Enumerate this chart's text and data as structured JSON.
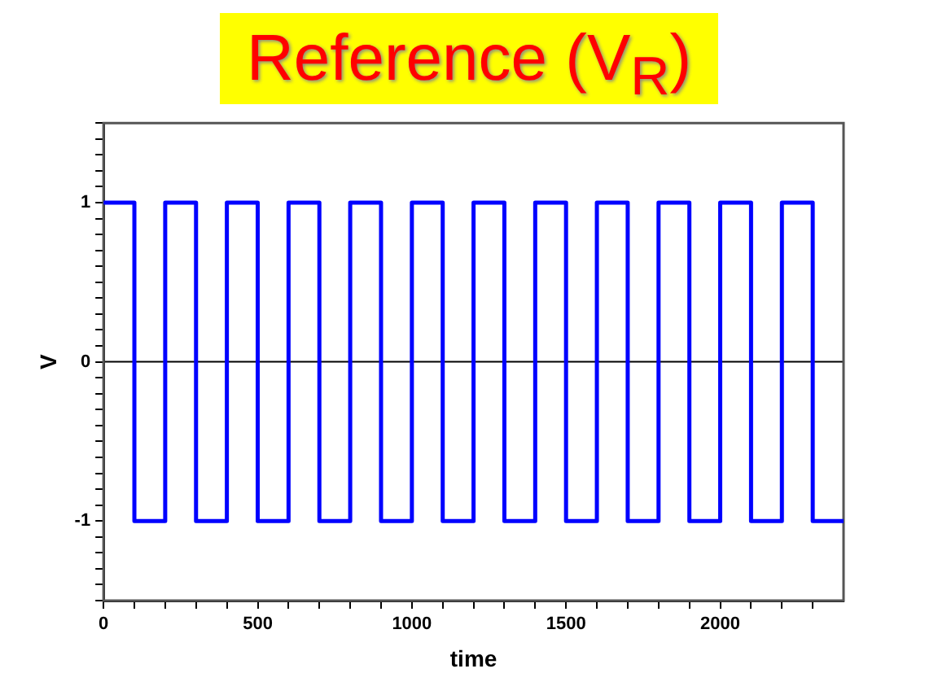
{
  "chart_data": {
    "type": "step",
    "title": "Reference (V$_{R}$)",
    "xlabel": "time",
    "ylabel": "V",
    "x": [
      0,
      100,
      200,
      300,
      400,
      500,
      600,
      700,
      800,
      900,
      1000,
      1100,
      1200,
      1300,
      1400,
      1500,
      1600,
      1700,
      1800,
      1900,
      2000,
      2100,
      2200,
      2300,
      2400
    ],
    "series": [
      {
        "color": "#0000ff",
        "values": [
          1,
          -1,
          1,
          -1,
          1,
          -1,
          1,
          -1,
          1,
          -1,
          1,
          -1,
          1,
          -1,
          1,
          -1,
          1,
          -1,
          1,
          -1,
          1,
          -1,
          1,
          -1,
          -1
        ]
      }
    ],
    "xlim": [
      0,
      2400
    ],
    "xticks": [
      0,
      {
        "value": 100,
        "label": null
      },
      {
        "value": 200,
        "label": null
      },
      {
        "value": 300,
        "label": null
      },
      {
        "value": 400,
        "label": null
      },
      500,
      {
        "value": 600,
        "label": null
      },
      {
        "value": 700,
        "label": null
      },
      {
        "value": 800,
        "label": null
      },
      {
        "value": 900,
        "label": null
      },
      1000,
      {
        "value": 1100,
        "label": null
      },
      {
        "value": 1200,
        "label": null
      },
      {
        "value": 1300,
        "label": null
      },
      {
        "value": 1400,
        "label": null
      },
      1500,
      {
        "value": 1600,
        "label": null
      },
      {
        "value": 1700,
        "label": null
      },
      {
        "value": 1800,
        "label": null
      },
      {
        "value": 1900,
        "label": null
      },
      2000,
      {
        "value": 2100,
        "label": null
      },
      {
        "value": 2200,
        "label": null
      },
      {
        "value": 2300,
        "label": null
      }
    ],
    "ylim": [
      -1.5,
      1.5
    ],
    "yticks": [
      {
        "value": -1.5,
        "label": null
      },
      {
        "value": -1.4,
        "label": null
      },
      {
        "value": -1.3,
        "label": null
      },
      {
        "value": -1.2,
        "label": null
      },
      {
        "value": -1.1,
        "label": null
      },
      -1,
      {
        "value": -0.9,
        "label": null
      },
      {
        "value": -0.8,
        "label": null
      },
      {
        "value": -0.7,
        "label": null
      },
      {
        "value": -0.6,
        "label": null
      },
      {
        "value": -0.5,
        "label": null
      },
      {
        "value": -0.4,
        "label": null
      },
      {
        "value": -0.3,
        "label": null
      },
      {
        "value": -0.2,
        "label": null
      },
      {
        "value": -0.1,
        "label": null
      },
      0,
      {
        "value": 0.1,
        "label": null
      },
      {
        "value": 0.2,
        "label": null
      },
      {
        "value": 0.3,
        "label": null
      },
      {
        "value": 0.4,
        "label": null
      },
      {
        "value": 0.5,
        "label": null
      },
      {
        "value": 0.6,
        "label": null
      },
      {
        "value": 0.7,
        "label": null
      },
      {
        "value": 0.8,
        "label": null
      },
      {
        "value": 0.9,
        "label": null
      },
      1,
      {
        "value": 1.1,
        "label": null
      },
      {
        "value": 1.2,
        "label": null
      },
      {
        "value": 1.3,
        "label": null
      },
      {
        "value": 1.4,
        "label": null
      },
      {
        "value": 1.5,
        "label": null
      }
    ],
    "ref_lines": [
      {
        "axis": "y",
        "value": 0,
        "color": "#000000"
      }
    ],
    "grid": false,
    "legend": false,
    "marker": "none",
    "line_style": "solid"
  }
}
